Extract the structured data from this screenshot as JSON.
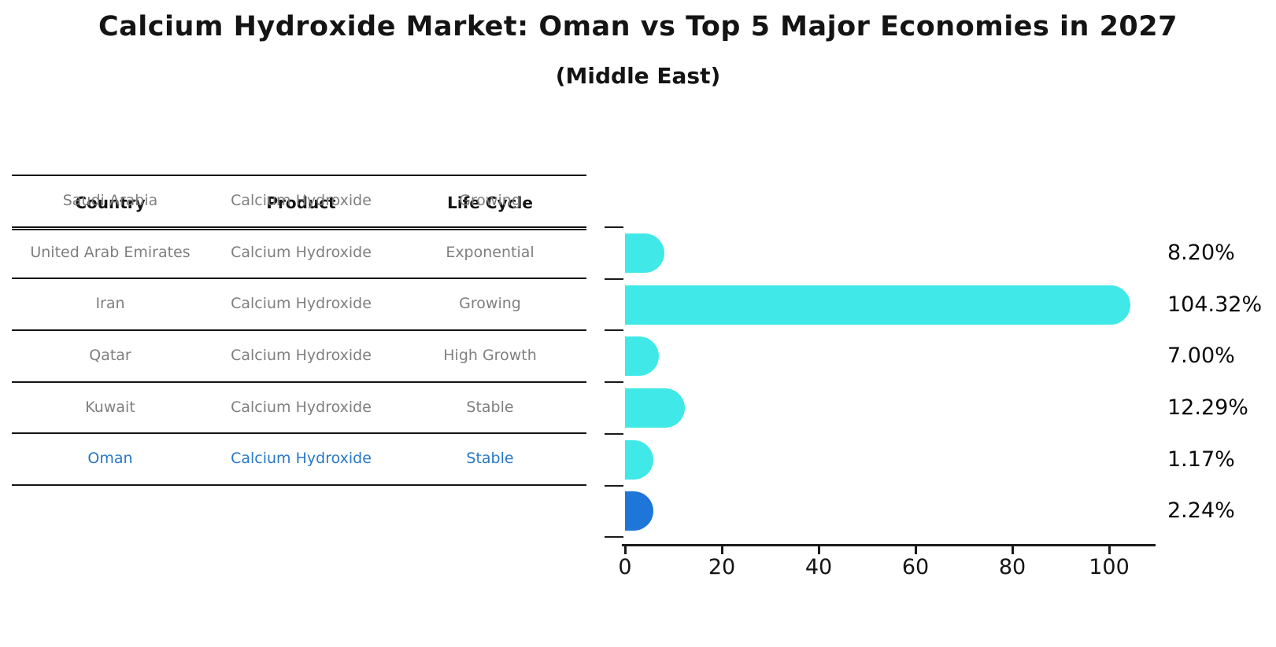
{
  "title": "Calcium Hydroxide Market: Oman vs Top 5 Major Economies in 2027",
  "subtitle": "(Middle East)",
  "table": {
    "headers": [
      "Country",
      "Product",
      "Life Cycle"
    ],
    "rows": [
      {
        "country": "Saudi Arabia",
        "product": "Calcium Hydroxide",
        "life_cycle": "Growing",
        "highlight": false
      },
      {
        "country": "United Arab Emirates",
        "product": "Calcium Hydroxide",
        "life_cycle": "Exponential",
        "highlight": false
      },
      {
        "country": "Iran",
        "product": "Calcium Hydroxide",
        "life_cycle": "Growing",
        "highlight": false
      },
      {
        "country": "Qatar",
        "product": "Calcium Hydroxide",
        "life_cycle": "High Growth",
        "highlight": false
      },
      {
        "country": "Kuwait",
        "product": "Calcium Hydroxide",
        "life_cycle": "Stable",
        "highlight": false
      },
      {
        "country": "Oman",
        "product": "Calcium Hydroxide",
        "life_cycle": "Stable",
        "highlight": true
      }
    ]
  },
  "chart_data": {
    "type": "bar",
    "orientation": "horizontal",
    "title": "Calcium Hydroxide Market: Oman vs Top 5 Major Economies in 2027 (Middle East)",
    "categories": [
      "Saudi Arabia",
      "United Arab Emirates",
      "Iran",
      "Qatar",
      "Kuwait",
      "Oman"
    ],
    "values": [
      8.2,
      104.32,
      7.0,
      12.29,
      1.17,
      2.24
    ],
    "value_labels": [
      "8.20%",
      "104.32%",
      "7.00%",
      "12.29%",
      "1.17%",
      "2.24%"
    ],
    "xlabel": "",
    "ylabel": "",
    "xlim": [
      0,
      110
    ],
    "x_ticks": [
      0,
      20,
      40,
      60,
      80,
      100
    ],
    "grid": false,
    "legend": false,
    "bar_color": "#40e8e8",
    "highlight_color": "#1e76d8",
    "highlight_index": 5
  },
  "colors": {
    "bar_cyan": "#40e8e8",
    "bar_blue": "#1e76d8",
    "highlight_text": "#2878c8",
    "cell_text": "#7f7f7f",
    "line_black": "#1a1a1a"
  }
}
